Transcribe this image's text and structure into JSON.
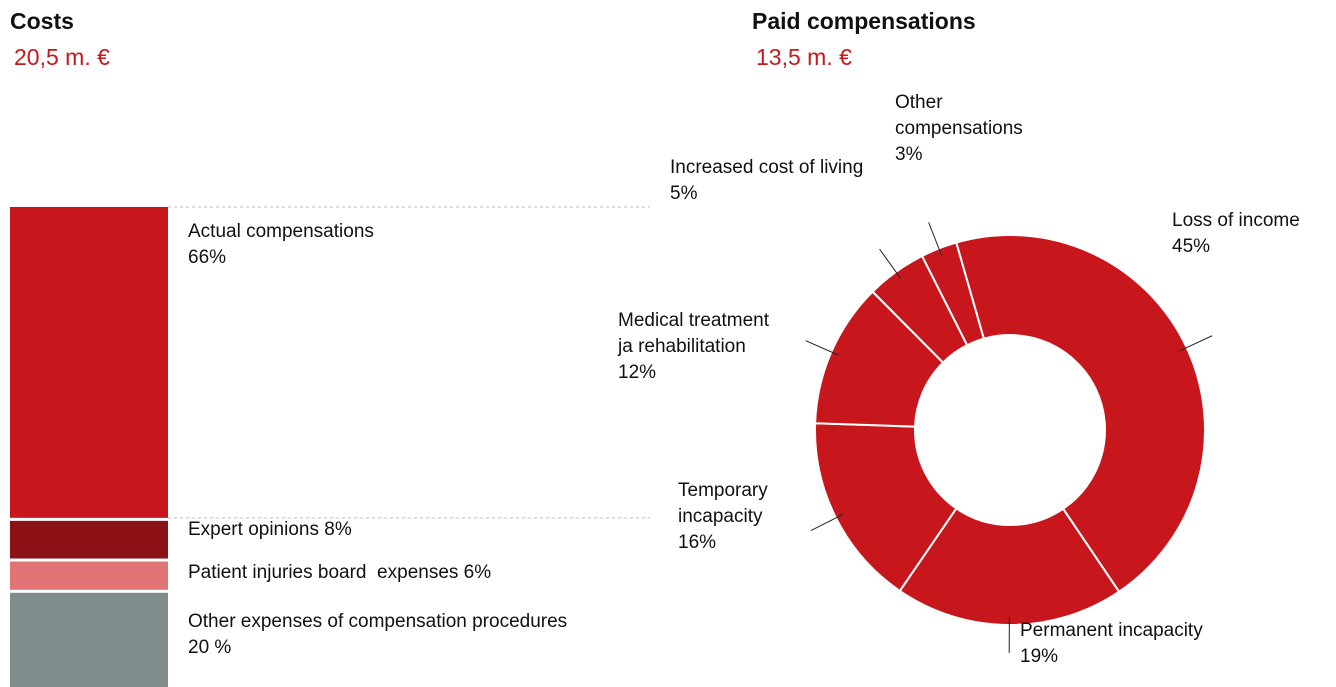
{
  "chart_data": [
    {
      "type": "stacked-column",
      "title": "Costs",
      "subtitle": "20,5 m. €",
      "series": [
        {
          "name": "Actual compensations",
          "color": "#c8171c",
          "values": [
            66
          ],
          "value_labels": [
            "66%"
          ]
        },
        {
          "name": "Expert opinions",
          "color": "#8b1116",
          "values": [
            8
          ],
          "value_labels": [
            "8%"
          ]
        },
        {
          "name": "Patient injuries board  expenses",
          "color": "#e07474",
          "values": [
            6
          ],
          "value_labels": [
            "6%"
          ]
        },
        {
          "name": "Other expenses of compensation procedures",
          "color": "#7f8c8b",
          "values": [
            20
          ],
          "value_labels": [
            "20 %"
          ]
        }
      ]
    },
    {
      "type": "donut",
      "title": "Paid compensations",
      "subtitle": "13,5 m. €",
      "color": "#c8171c",
      "categories": [
        "Loss of income",
        "Permanent incapacity",
        "Temporary incapacity",
        "Medical treatment ja rehabilitation",
        "Increased cost of living",
        "Other compensations"
      ],
      "values": [
        45,
        19,
        16,
        12,
        5,
        3
      ],
      "value_labels": [
        "45%",
        "19%",
        "16%",
        "12%",
        "5%",
        "3%"
      ]
    }
  ]
}
